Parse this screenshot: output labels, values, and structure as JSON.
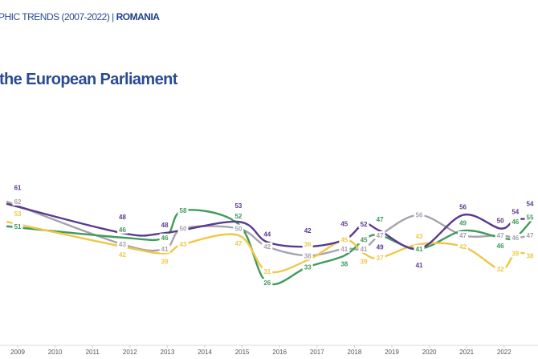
{
  "header": {
    "prefix": "PHIC TRENDS (2007-2022) | ",
    "country": "ROMANIA"
  },
  "title": "the European Parliament",
  "chart_data": {
    "type": "line",
    "title": "the European Parliament",
    "xlabel": "",
    "ylabel": "",
    "xticks": [
      "2009",
      "2010",
      "2011",
      "2012",
      "2013",
      "2014",
      "2015",
      "2016",
      "2017",
      "2018",
      "2019",
      "2020",
      "2021",
      "2022"
    ],
    "xlim": [
      2008.6,
      2022.9
    ],
    "ylim": [
      0,
      80
    ],
    "grid": false,
    "series": [
      {
        "color": "#a7a3ae",
        "x": [
          2008.7,
          2011.8,
          2012.93,
          2013.42,
          2014.9,
          2015.67,
          2016.75,
          2017.73,
          2018.25,
          2018.68,
          2019.73,
          2020.9,
          2021.9,
          2022.3,
          2022.8
        ],
        "y": [
          62,
          43,
          41,
          50,
          50,
          42,
          38,
          41,
          41,
          47,
          56,
          47,
          47,
          46,
          47
        ]
      },
      {
        "color": "#3f9a5c",
        "x": [
          2008.7,
          2011.8,
          2012.93,
          2013.42,
          2014.9,
          2015.67,
          2016.75,
          2017.73,
          2018.25,
          2018.68,
          2019.73,
          2020.9,
          2021.9,
          2022.3,
          2022.8
        ],
        "y": [
          51,
          46,
          46,
          58,
          52,
          26,
          33,
          38,
          45,
          47,
          41,
          49,
          46,
          46,
          55
        ]
      },
      {
        "color": "#f0c846",
        "x": [
          2008.7,
          2011.8,
          2012.93,
          2013.42,
          2014.9,
          2015.67,
          2016.75,
          2017.73,
          2018.25,
          2018.68,
          2019.73,
          2020.9,
          2021.9,
          2022.3,
          2022.8
        ],
        "y": [
          53,
          42,
          39,
          43,
          47,
          31,
          36,
          45,
          39,
          37,
          43,
          42,
          32,
          39,
          38
        ]
      },
      {
        "color": "#5a3a8e",
        "x": [
          2008.7,
          2011.8,
          2012.93,
          2014.9,
          2015.67,
          2016.75,
          2017.73,
          2018.25,
          2018.68,
          2019.73,
          2020.9,
          2021.9,
          2022.3,
          2022.8
        ],
        "y": [
          61,
          48,
          48,
          53,
          44,
          42,
          45,
          52,
          49,
          41,
          56,
          50,
          54,
          54
        ]
      }
    ]
  }
}
